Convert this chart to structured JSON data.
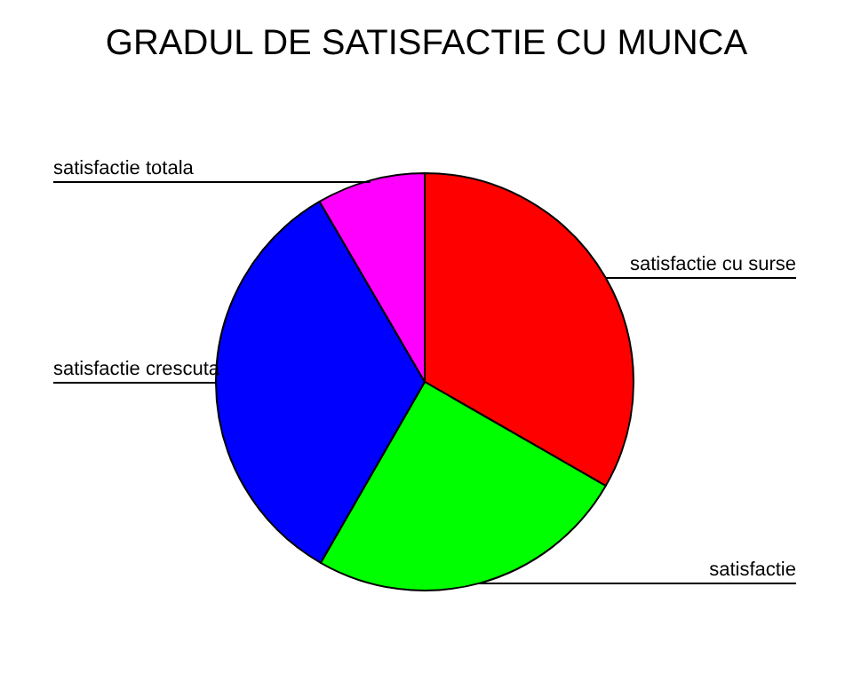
{
  "chart_data": {
    "type": "pie",
    "title": "GRADUL DE SATISFACTIE CU MUNCA",
    "categories": [
      "satisfactie cu surse",
      "satisfactie",
      "satisfactie crescuta",
      "satisfactie totala"
    ],
    "values": [
      33.3,
      25,
      33.3,
      8.4
    ],
    "colors": [
      "#ff0000",
      "#00ff00",
      "#0000ff",
      "#ff00ff"
    ],
    "legend": false
  }
}
